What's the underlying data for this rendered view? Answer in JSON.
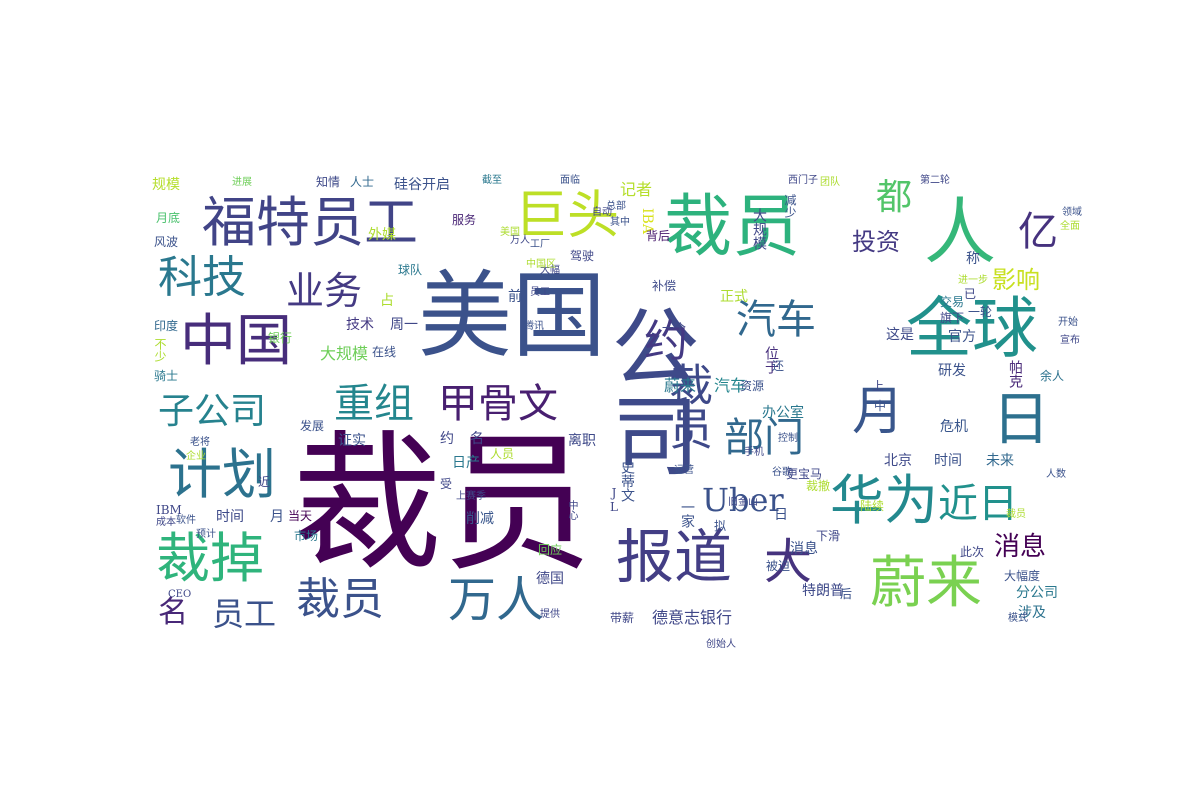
{
  "words": [
    {
      "id": "w0",
      "text": "裁员",
      "color": "#440154"
    },
    {
      "id": "w1",
      "text": "美国",
      "color": "#3b528b"
    },
    {
      "id": "w2",
      "text": "裁员",
      "color": "#2db27d"
    },
    {
      "id": "w3",
      "text": "福特员工",
      "color": "#414487"
    },
    {
      "id": "w4",
      "text": "巨头",
      "color": "#bddf26"
    },
    {
      "id": "w5",
      "text": "公司",
      "color": "#3e4a89"
    },
    {
      "id": "w6",
      "text": "人",
      "color": "#35b779"
    },
    {
      "id": "w7",
      "text": "全球",
      "color": "#21918c"
    },
    {
      "id": "w8",
      "text": "中国",
      "color": "#472d7b"
    },
    {
      "id": "w9",
      "text": "科技",
      "color": "#2a788e"
    },
    {
      "id": "w10",
      "text": "业务",
      "color": "#443a83"
    },
    {
      "id": "w11",
      "text": "约",
      "color": "#443983"
    },
    {
      "id": "w12",
      "text": "汽车",
      "color": "#31688e"
    },
    {
      "id": "w13",
      "text": "计划",
      "color": "#2c728e"
    },
    {
      "id": "w14",
      "text": "重组",
      "color": "#24868e"
    },
    {
      "id": "w15",
      "text": "甲骨文",
      "color": "#481f70"
    },
    {
      "id": "w16",
      "text": "子公司",
      "color": "#26828e"
    },
    {
      "id": "w17",
      "text": "裁员",
      "color": "#3e4989"
    },
    {
      "id": "w18",
      "text": "部门",
      "color": "#31688e"
    },
    {
      "id": "w19",
      "text": "月",
      "color": "#39568c"
    },
    {
      "id": "w20",
      "text": "日",
      "color": "#2d708e"
    },
    {
      "id": "w21",
      "text": "华为",
      "color": "#23898e"
    },
    {
      "id": "w22",
      "text": "近日",
      "color": "#21918c"
    },
    {
      "id": "w23",
      "text": "Uber",
      "color": "#3b528b"
    },
    {
      "id": "w24",
      "text": "报道",
      "color": "#433e85"
    },
    {
      "id": "w25",
      "text": "蔚来",
      "color": "#7ad151"
    },
    {
      "id": "w26",
      "text": "裁掉",
      "color": "#2fb47c"
    },
    {
      "id": "w27",
      "text": "裁员",
      "color": "#3b528b"
    },
    {
      "id": "w28",
      "text": "万人",
      "color": "#31688e"
    },
    {
      "id": "w29",
      "text": "大",
      "color": "#46337e"
    },
    {
      "id": "w30",
      "text": "名",
      "color": "#482878"
    },
    {
      "id": "w31",
      "text": "员工",
      "color": "#3b528b"
    },
    {
      "id": "w32",
      "text": "消息",
      "color": "#440154"
    },
    {
      "id": "w33",
      "text": "亿",
      "color": "#46327e"
    },
    {
      "id": "w34",
      "text": "都",
      "color": "#52c569"
    },
    {
      "id": "w35",
      "text": "投资",
      "color": "#443a83"
    },
    {
      "id": "w36",
      "text": "影响",
      "color": "#c8e020"
    },
    {
      "id": "w37",
      "text": "规模",
      "color": "#b5de2b"
    },
    {
      "id": "w38",
      "text": "进展",
      "color": "#6ece58"
    },
    {
      "id": "w39",
      "text": "知情",
      "color": "#3e4989"
    },
    {
      "id": "w40",
      "text": "人士",
      "color": "#31688e"
    },
    {
      "id": "w41",
      "text": "硅谷开启",
      "color": "#3b528b"
    },
    {
      "id": "w42",
      "text": "截至",
      "color": "#2a788e"
    },
    {
      "id": "w43",
      "text": "周一",
      "color": "#3f4788"
    },
    {
      "id": "w44",
      "text": "技术",
      "color": "#443a83"
    },
    {
      "id": "w45",
      "text": "大规模",
      "color": "#6ece58"
    },
    {
      "id": "w46",
      "text": "外媒",
      "color": "#addc30"
    },
    {
      "id": "w47",
      "text": "球队",
      "color": "#2a788e"
    },
    {
      "id": "w48",
      "text": "服务",
      "color": "#482475"
    },
    {
      "id": "w49",
      "text": "月底",
      "color": "#4ac16d"
    },
    {
      "id": "w50",
      "text": "风波",
      "color": "#3b528b"
    },
    {
      "id": "w51",
      "text": "印度",
      "color": "#31688e"
    },
    {
      "id": "w52",
      "text": "骑士",
      "color": "#2a788e"
    },
    {
      "id": "w53",
      "text": "记者",
      "color": "#b5de2b"
    },
    {
      "id": "w54",
      "text": "IBA",
      "color": "#d8e219"
    },
    {
      "id": "w55",
      "text": "正式",
      "color": "#addc30"
    },
    {
      "id": "w56",
      "text": "背后",
      "color": "#481a6c"
    },
    {
      "id": "w57",
      "text": "驾驶",
      "color": "#3f4788"
    },
    {
      "id": "w58",
      "text": "补偿",
      "color": "#3e4a89"
    },
    {
      "id": "w59",
      "text": "蔚来",
      "color": "#2a788e"
    },
    {
      "id": "w60",
      "text": "汽车",
      "color": "#24868e"
    },
    {
      "id": "w61",
      "text": "位于",
      "color": "#472f7d"
    },
    {
      "id": "w62",
      "text": "这是",
      "color": "#3e4a89"
    },
    {
      "id": "w63",
      "text": "官方",
      "color": "#3b528b"
    },
    {
      "id": "w64",
      "text": "交易",
      "color": "#2a788e"
    },
    {
      "id": "w65",
      "text": "旗下",
      "color": "#3f4788"
    },
    {
      "id": "w66",
      "text": "研发",
      "color": "#3b528b"
    },
    {
      "id": "w67",
      "text": "余人",
      "color": "#2c728e"
    },
    {
      "id": "w68",
      "text": "帕克",
      "color": "#482878"
    },
    {
      "id": "w69",
      "text": "危机",
      "color": "#39568c"
    },
    {
      "id": "w70",
      "text": "办公室",
      "color": "#2a788e"
    },
    {
      "id": "w71",
      "text": "北京",
      "color": "#3e4989"
    },
    {
      "id": "w72",
      "text": "时间",
      "color": "#3b528b"
    },
    {
      "id": "w73",
      "text": "未来",
      "color": "#31688e"
    },
    {
      "id": "w74",
      "text": "约",
      "color": "#3f4788"
    },
    {
      "id": "w75",
      "text": "名",
      "color": "#3f4788"
    },
    {
      "id": "w76",
      "text": "离职",
      "color": "#3e4989"
    },
    {
      "id": "w77",
      "text": "证实",
      "color": "#3b528b"
    },
    {
      "id": "w78",
      "text": "发展",
      "color": "#3b528b"
    },
    {
      "id": "w79",
      "text": "日产",
      "color": "#2a788e"
    },
    {
      "id": "w80",
      "text": "时间",
      "color": "#3e4a89"
    },
    {
      "id": "w81",
      "text": "月",
      "color": "#3b528b"
    },
    {
      "id": "w82",
      "text": "削减",
      "color": "#39568c"
    },
    {
      "id": "w83",
      "text": "日",
      "color": "#3b528b"
    },
    {
      "id": "w84",
      "text": "消息",
      "color": "#3b528b"
    },
    {
      "id": "w85",
      "text": "市场",
      "color": "#2a788e"
    },
    {
      "id": "w86",
      "text": "德国",
      "color": "#3f4788"
    },
    {
      "id": "w87",
      "text": "回应",
      "color": "#6ece58"
    },
    {
      "id": "w88",
      "text": "德意志银行",
      "color": "#3f4788"
    },
    {
      "id": "w89",
      "text": "分公司",
      "color": "#2a788e"
    },
    {
      "id": "w90",
      "text": "涉及",
      "color": "#2c728e"
    },
    {
      "id": "w91",
      "text": "特朗普",
      "color": "#3e4989"
    },
    {
      "id": "w92",
      "text": "被迫",
      "color": "#3b528b"
    },
    {
      "id": "w93",
      "text": "此次",
      "color": "#3f4788"
    },
    {
      "id": "w94",
      "text": "大幅度",
      "color": "#3b528b"
    },
    {
      "id": "w95",
      "text": "下滑",
      "color": "#3f4788"
    },
    {
      "id": "w96",
      "text": "一家",
      "color": "#3b528b"
    },
    {
      "id": "w97",
      "text": "当天",
      "color": "#440154"
    },
    {
      "id": "w98",
      "text": "称",
      "color": "#3b528b"
    },
    {
      "id": "w99",
      "text": "带薪",
      "color": "#3f4788"
    },
    {
      "id": "w100",
      "text": "在线",
      "color": "#3b528b"
    },
    {
      "id": "w101",
      "text": "银行",
      "color": "#6ece58"
    },
    {
      "id": "w102",
      "text": "一个",
      "color": "#3f4788"
    },
    {
      "id": "w103",
      "text": "前",
      "color": "#3b528b"
    },
    {
      "id": "w104",
      "text": "占",
      "color": "#addc30"
    },
    {
      "id": "w105",
      "text": "资源",
      "color": "#3b528b"
    },
    {
      "id": "w106",
      "text": "上",
      "color": "#3f4788"
    },
    {
      "id": "w107",
      "text": "中",
      "color": "#3b528b"
    },
    {
      "id": "w108",
      "text": "后",
      "color": "#3b528b"
    },
    {
      "id": "w109",
      "text": "受",
      "color": "#3f4788"
    },
    {
      "id": "w110",
      "text": "近",
      "color": "#3f4788"
    },
    {
      "id": "w111",
      "text": "人员",
      "color": "#addc30"
    },
    {
      "id": "w112",
      "text": "软件",
      "color": "#3b528b"
    },
    {
      "id": "w113",
      "text": "成本",
      "color": "#3f4788"
    },
    {
      "id": "w114",
      "text": "预计",
      "color": "#3b528b"
    },
    {
      "id": "w115",
      "text": "第二轮",
      "color": "#3f4788"
    },
    {
      "id": "w116",
      "text": "陆续",
      "color": "#addc30"
    },
    {
      "id": "w117",
      "text": "谷歌",
      "color": "#3b528b"
    },
    {
      "id": "w118",
      "text": "更宝马",
      "color": "#3f4788"
    },
    {
      "id": "w119",
      "text": "裁撤",
      "color": "#addc30"
    },
    {
      "id": "w120",
      "text": "IBM",
      "color": "#3f4788"
    },
    {
      "id": "w121",
      "text": "还",
      "color": "#3b528b"
    },
    {
      "id": "w122",
      "text": "不少",
      "color": "#addc30"
    },
    {
      "id": "w123",
      "text": "模式",
      "color": "#3b528b"
    },
    {
      "id": "w124",
      "text": "创始人",
      "color": "#3f4788"
    },
    {
      "id": "w125",
      "text": "JL",
      "color": "#3f4788"
    },
    {
      "id": "w126",
      "text": "史蒂文",
      "color": "#3b528b"
    },
    {
      "id": "w127",
      "text": "大规模",
      "color": "#3f4788"
    },
    {
      "id": "w128",
      "text": "减少",
      "color": "#3b528b"
    },
    {
      "id": "w129",
      "text": "万人",
      "color": "#3f4788"
    },
    {
      "id": "w130",
      "text": "美国",
      "color": "#addc30"
    },
    {
      "id": "w131",
      "text": "面临",
      "color": "#3b528b"
    },
    {
      "id": "w132",
      "text": "已",
      "color": "#3f4788"
    },
    {
      "id": "w133",
      "text": "一轮",
      "color": "#3b528b"
    },
    {
      "id": "w134",
      "text": "进一步",
      "color": "#addc30"
    },
    {
      "id": "w135",
      "text": "手机",
      "color": "#3f4788"
    },
    {
      "id": "w136",
      "text": "开始",
      "color": "#3b528b"
    },
    {
      "id": "w137",
      "text": "宣布",
      "color": "#3f4788"
    },
    {
      "id": "w138",
      "text": "控制",
      "color": "#3b528b"
    },
    {
      "id": "w139",
      "text": "上赛季",
      "color": "#3f4788"
    },
    {
      "id": "w140",
      "text": "老将",
      "color": "#3b528b"
    },
    {
      "id": "w141",
      "text": "企业",
      "color": "#addc30"
    },
    {
      "id": "w142",
      "text": "CEO",
      "color": "#3f4788"
    },
    {
      "id": "w143",
      "text": "人数",
      "color": "#3b528b"
    },
    {
      "id": "w144",
      "text": "中心",
      "color": "#3f4788"
    },
    {
      "id": "w145",
      "text": "拟",
      "color": "#3b528b"
    },
    {
      "id": "w146",
      "text": "裁员",
      "color": "#addc30"
    },
    {
      "id": "w147",
      "text": "旧金山",
      "color": "#3f4788"
    },
    {
      "id": "w148",
      "text": "总部",
      "color": "#3b528b"
    },
    {
      "id": "w149",
      "text": "团队",
      "color": "#addc30"
    },
    {
      "id": "w150",
      "text": "西门子",
      "color": "#3f4788"
    },
    {
      "id": "w151",
      "text": "运营",
      "color": "#3b528b"
    },
    {
      "id": "w152",
      "text": "员工",
      "color": "#3f4788"
    },
    {
      "id": "w153",
      "text": "工厂",
      "color": "#3b528b"
    },
    {
      "id": "w154",
      "text": "大幅",
      "color": "#3f4788"
    },
    {
      "id": "w155",
      "text": "腾讯",
      "color": "#3b528b"
    },
    {
      "id": "w156",
      "text": "中国区",
      "color": "#addc30"
    },
    {
      "id": "w157",
      "text": "自动",
      "color": "#3f4788"
    },
    {
      "id": "w158",
      "text": "其中",
      "color": "#3b528b"
    },
    {
      "id": "w159",
      "text": "提供",
      "color": "#3f4788"
    },
    {
      "id": "w160",
      "text": "领域",
      "color": "#3b528b"
    },
    {
      "id": "w161",
      "text": "全面",
      "color": "#addc30"
    }
  ]
}
